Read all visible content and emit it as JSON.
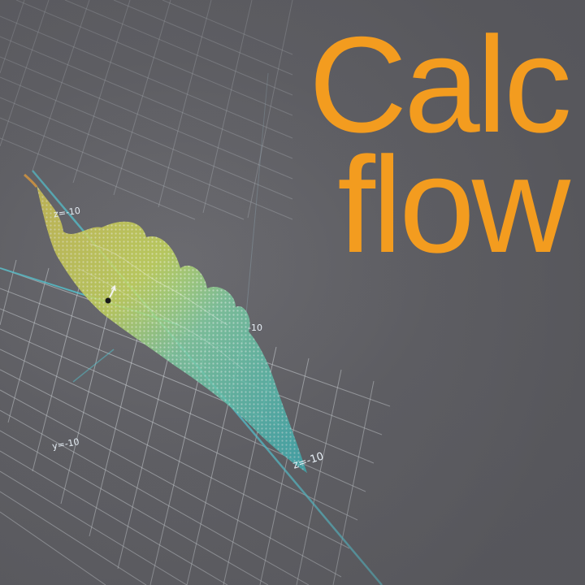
{
  "title": {
    "line1": "Calc",
    "line2": "flow"
  },
  "axis_labels": {
    "z_top": "z=-10",
    "z_bottom": "z=-10",
    "y_bottom": "y=-10",
    "x_right": "-10"
  },
  "colors": {
    "background": "#5a5a5e",
    "title": "#f39c1f",
    "grid": "#cfd3d8",
    "surface_high": "#e8d84a",
    "surface_mid": "#9fd27a",
    "surface_low": "#35c4c9"
  }
}
